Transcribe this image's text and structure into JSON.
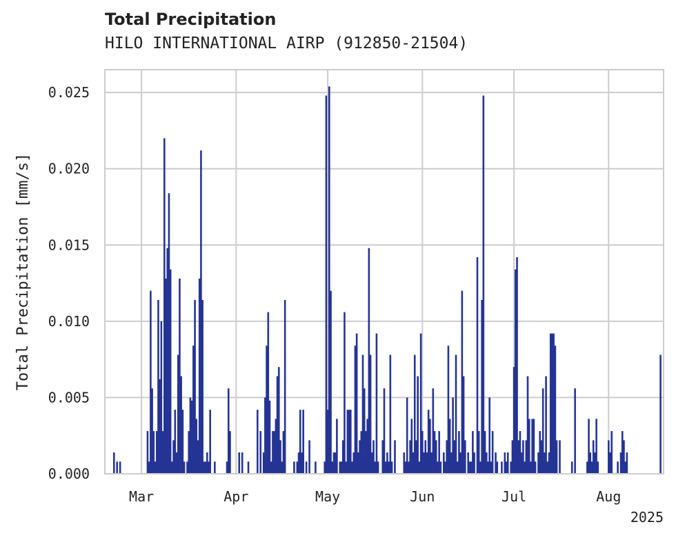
{
  "title": "Total Precipitation",
  "subtitle": "HILO INTERNATIONAL AIRP (912850-21504)",
  "colors": {
    "bar": "#253494",
    "grid": "#cccccc",
    "axis": "#cccccc",
    "text": "#222222"
  },
  "chart_data": {
    "type": "bar",
    "title": "Total Precipitation",
    "subtitle": "HILO INTERNATIONAL AIRP (912850-21504)",
    "xlabel": "",
    "ylabel": "Total Precipitation [mm/s]",
    "x_ticks": [
      "Mar",
      "Apr",
      "May",
      "Jun",
      "Jul",
      "Aug"
    ],
    "x_tick_dates": [
      "2025-03-01",
      "2025-04-01",
      "2025-05-01",
      "2025-06-01",
      "2025-07-01",
      "2025-08-01"
    ],
    "x_offset_label": "2025",
    "xlim": [
      "2025-02-17",
      "2025-08-19"
    ],
    "y_ticks": [
      "0.000",
      "0.005",
      "0.010",
      "0.015",
      "0.020",
      "0.025"
    ],
    "ylim": [
      0,
      0.0265
    ],
    "grid": true,
    "series": [
      {
        "values": [
          [
            "2025-02-20",
            0.0014
          ],
          [
            "2025-02-21",
            0.0008
          ],
          [
            "2025-02-22",
            0.0008
          ],
          [
            "2025-03-03",
            0.0028
          ],
          [
            "2025-03-03T12",
            0.0008
          ],
          [
            "2025-03-04",
            0.012
          ],
          [
            "2025-03-04T12",
            0.0056
          ],
          [
            "2025-03-05",
            0.0028
          ],
          [
            "2025-03-05T12",
            0.0008
          ],
          [
            "2025-03-06",
            0.0028
          ],
          [
            "2025-03-06T12",
            0.0114
          ],
          [
            "2025-03-07",
            0.0062
          ],
          [
            "2025-03-07T12",
            0.01
          ],
          [
            "2025-03-08",
            0.0028
          ],
          [
            "2025-03-08T12",
            0.022
          ],
          [
            "2025-03-09",
            0.0128
          ],
          [
            "2025-03-09T12",
            0.0148
          ],
          [
            "2025-03-10",
            0.0184
          ],
          [
            "2025-03-10T12",
            0.0134
          ],
          [
            "2025-03-11",
            0.0008
          ],
          [
            "2025-03-11T12",
            0.0022
          ],
          [
            "2025-03-12",
            0.0042
          ],
          [
            "2025-03-12T12",
            0.0014
          ],
          [
            "2025-03-13",
            0.0078
          ],
          [
            "2025-03-13T12",
            0.0128
          ],
          [
            "2025-03-14",
            0.0064
          ],
          [
            "2025-03-14T12",
            0.0042
          ],
          [
            "2025-03-15",
            0.0008
          ],
          [
            "2025-03-16",
            0.0008
          ],
          [
            "2025-03-16T12",
            0.0028
          ],
          [
            "2025-03-17",
            0.005
          ],
          [
            "2025-03-17T12",
            0.0048
          ],
          [
            "2025-03-18",
            0.0084
          ],
          [
            "2025-03-18T12",
            0.0114
          ],
          [
            "2025-03-19",
            0.0036
          ],
          [
            "2025-03-19T12",
            0.0022
          ],
          [
            "2025-03-20",
            0.0128
          ],
          [
            "2025-03-20T12",
            0.0212
          ],
          [
            "2025-03-21",
            0.0114
          ],
          [
            "2025-03-21T12",
            0.0008
          ],
          [
            "2025-03-22",
            0.0008
          ],
          [
            "2025-03-22T12",
            0.0014
          ],
          [
            "2025-03-23",
            0.0008
          ],
          [
            "2025-03-23T12",
            0.0042
          ],
          [
            "2025-03-25",
            0.0008
          ],
          [
            "2025-03-29",
            0.0008
          ],
          [
            "2025-03-29T12",
            0.0056
          ],
          [
            "2025-03-30",
            0.0028
          ],
          [
            "2025-04-02",
            0.0014
          ],
          [
            "2025-04-03",
            0.0014
          ],
          [
            "2025-04-05",
            0.0008
          ],
          [
            "2025-04-08",
            0.0042
          ],
          [
            "2025-04-09",
            0.0028
          ],
          [
            "2025-04-10",
            0.0014
          ],
          [
            "2025-04-10T12",
            0.005
          ],
          [
            "2025-04-11",
            0.0084
          ],
          [
            "2025-04-11T12",
            0.0106
          ],
          [
            "2025-04-12",
            0.0048
          ],
          [
            "2025-04-12T12",
            0.0008
          ],
          [
            "2025-04-13",
            0.0028
          ],
          [
            "2025-04-13T12",
            0.0028
          ],
          [
            "2025-04-14",
            0.0036
          ],
          [
            "2025-04-14T12",
            0.0064
          ],
          [
            "2025-04-15",
            0.007
          ],
          [
            "2025-04-15T12",
            0.0022
          ],
          [
            "2025-04-16",
            0.0008
          ],
          [
            "2025-04-16T12",
            0.0028
          ],
          [
            "2025-04-17",
            0.0114
          ],
          [
            "2025-04-20",
            0.0008
          ],
          [
            "2025-04-21",
            0.0008
          ],
          [
            "2025-04-21T12",
            0.0014
          ],
          [
            "2025-04-22",
            0.0042
          ],
          [
            "2025-04-22T12",
            0.0014
          ],
          [
            "2025-04-23",
            0.0042
          ],
          [
            "2025-04-24",
            0.0008
          ],
          [
            "2025-04-25",
            0.0022
          ],
          [
            "2025-04-27",
            0.0008
          ],
          [
            "2025-04-30",
            0.0008
          ],
          [
            "2025-04-30T12",
            0.0248
          ],
          [
            "2025-05-01",
            0.0042
          ],
          [
            "2025-05-01T12",
            0.0254
          ],
          [
            "2025-05-02",
            0.012
          ],
          [
            "2025-05-02T12",
            0.0008
          ],
          [
            "2025-05-03",
            0.0014
          ],
          [
            "2025-05-03T12",
            0.0014
          ],
          [
            "2025-05-04",
            0.0036
          ],
          [
            "2025-05-05",
            0.0008
          ],
          [
            "2025-05-05T12",
            0.0008
          ],
          [
            "2025-05-06",
            0.0022
          ],
          [
            "2025-05-06T12",
            0.0106
          ],
          [
            "2025-05-07",
            0.0008
          ],
          [
            "2025-05-07T12",
            0.0042
          ],
          [
            "2025-05-08",
            0.0042
          ],
          [
            "2025-05-08T12",
            0.0042
          ],
          [
            "2025-05-09",
            0.0008
          ],
          [
            "2025-05-09T12",
            0.0014
          ],
          [
            "2025-05-10",
            0.0084
          ],
          [
            "2025-05-10T12",
            0.0092
          ],
          [
            "2025-05-11",
            0.0014
          ],
          [
            "2025-05-11T12",
            0.0022
          ],
          [
            "2025-05-12",
            0.0028
          ],
          [
            "2025-05-12T12",
            0.0078
          ],
          [
            "2025-05-13",
            0.0056
          ],
          [
            "2025-05-13T12",
            0.0028
          ],
          [
            "2025-05-14",
            0.0036
          ],
          [
            "2025-05-14T12",
            0.0148
          ],
          [
            "2025-05-15",
            0.0078
          ],
          [
            "2025-05-15T12",
            0.0014
          ],
          [
            "2025-05-16",
            0.0022
          ],
          [
            "2025-05-16T12",
            0.0008
          ],
          [
            "2025-05-17",
            0.0092
          ],
          [
            "2025-05-17T12",
            0.0008
          ],
          [
            "2025-05-19",
            0.0022
          ],
          [
            "2025-05-19T12",
            0.0056
          ],
          [
            "2025-05-20",
            0.0008
          ],
          [
            "2025-05-20T12",
            0.0014
          ],
          [
            "2025-05-21",
            0.0008
          ],
          [
            "2025-05-21T12",
            0.0078
          ],
          [
            "2025-05-22",
            0.0008
          ],
          [
            "2025-05-23",
            0.0022
          ],
          [
            "2025-05-26",
            0.0014
          ],
          [
            "2025-05-26T12",
            0.0008
          ],
          [
            "2025-05-27",
            0.005
          ],
          [
            "2025-05-27T12",
            0.0008
          ],
          [
            "2025-05-28",
            0.0022
          ],
          [
            "2025-05-28T12",
            0.0036
          ],
          [
            "2025-05-29",
            0.0014
          ],
          [
            "2025-05-29T12",
            0.0078
          ],
          [
            "2025-05-30",
            0.0022
          ],
          [
            "2025-05-30T12",
            0.0064
          ],
          [
            "2025-05-31",
            0.0008
          ],
          [
            "2025-05-31T12",
            0.0092
          ],
          [
            "2025-06-01",
            0.0028
          ],
          [
            "2025-06-01T12",
            0.0014
          ],
          [
            "2025-06-02",
            0.0022
          ],
          [
            "2025-06-02T12",
            0.0014
          ],
          [
            "2025-06-03",
            0.0042
          ],
          [
            "2025-06-03T12",
            0.0036
          ],
          [
            "2025-06-04",
            0.0014
          ],
          [
            "2025-06-04T12",
            0.0056
          ],
          [
            "2025-06-05",
            0.0028
          ],
          [
            "2025-06-05T12",
            0.0022
          ],
          [
            "2025-06-06",
            0.0008
          ],
          [
            "2025-06-06T12",
            0.0028
          ],
          [
            "2025-06-07",
            0.0008
          ],
          [
            "2025-06-08",
            0.0014
          ],
          [
            "2025-06-08T12",
            0.0008
          ],
          [
            "2025-06-09",
            0.0022
          ],
          [
            "2025-06-09T12",
            0.0084
          ],
          [
            "2025-06-10",
            0.0036
          ],
          [
            "2025-06-10T12",
            0.0014
          ],
          [
            "2025-06-11",
            0.005
          ],
          [
            "2025-06-11T12",
            0.0022
          ],
          [
            "2025-06-12",
            0.0078
          ],
          [
            "2025-06-12T12",
            0.0008
          ],
          [
            "2025-06-13",
            0.0028
          ],
          [
            "2025-06-13T12",
            0.0014
          ],
          [
            "2025-06-14",
            0.012
          ],
          [
            "2025-06-14T12",
            0.0064
          ],
          [
            "2025-06-15",
            0.0022
          ],
          [
            "2025-06-16",
            0.0014
          ],
          [
            "2025-06-16T12",
            0.0008
          ],
          [
            "2025-06-17",
            0.0008
          ],
          [
            "2025-06-17T12",
            0.0028
          ],
          [
            "2025-06-18",
            0.0014
          ],
          [
            "2025-06-19",
            0.0142
          ],
          [
            "2025-06-19T12",
            0.0028
          ],
          [
            "2025-06-20",
            0.0008
          ],
          [
            "2025-06-20T12",
            0.0114
          ],
          [
            "2025-06-21",
            0.0248
          ],
          [
            "2025-06-21T12",
            0.0028
          ],
          [
            "2025-06-22",
            0.0014
          ],
          [
            "2025-06-22T12",
            0.0008
          ],
          [
            "2025-06-23",
            0.005
          ],
          [
            "2025-06-23T12",
            0.0008
          ],
          [
            "2025-06-24",
            0.0028
          ],
          [
            "2025-06-25",
            0.0014
          ],
          [
            "2025-06-25T12",
            0.0008
          ],
          [
            "2025-06-27",
            0.0008
          ],
          [
            "2025-06-28",
            0.0014
          ],
          [
            "2025-06-28T12",
            0.0008
          ],
          [
            "2025-06-29",
            0.0014
          ],
          [
            "2025-06-30",
            0.0008
          ],
          [
            "2025-06-30T12",
            0.0022
          ],
          [
            "2025-07-01",
            0.007
          ],
          [
            "2025-07-01T12",
            0.0134
          ],
          [
            "2025-07-02",
            0.0142
          ],
          [
            "2025-07-02T12",
            0.0022
          ],
          [
            "2025-07-03",
            0.0028
          ],
          [
            "2025-07-03T12",
            0.0014
          ],
          [
            "2025-07-04",
            0.0022
          ],
          [
            "2025-07-04T12",
            0.0008
          ],
          [
            "2025-07-05",
            0.0022
          ],
          [
            "2025-07-05T12",
            0.0064
          ],
          [
            "2025-07-06",
            0.0036
          ],
          [
            "2025-07-06T12",
            0.0008
          ],
          [
            "2025-07-07",
            0.0036
          ],
          [
            "2025-07-07T12",
            0.0036
          ],
          [
            "2025-07-08",
            0.0008
          ],
          [
            "2025-07-09",
            0.0014
          ],
          [
            "2025-07-09T12",
            0.0028
          ],
          [
            "2025-07-10",
            0.0022
          ],
          [
            "2025-07-10T12",
            0.0056
          ],
          [
            "2025-07-11",
            0.0014
          ],
          [
            "2025-07-11T12",
            0.0064
          ],
          [
            "2025-07-12",
            0.0008
          ],
          [
            "2025-07-12T12",
            0.0014
          ],
          [
            "2025-07-13",
            0.0092
          ],
          [
            "2025-07-13T12",
            0.0092
          ],
          [
            "2025-07-14",
            0.0092
          ],
          [
            "2025-07-14T12",
            0.0084
          ],
          [
            "2025-07-15",
            0.0022
          ],
          [
            "2025-07-16",
            0.0022
          ],
          [
            "2025-07-20",
            0.0008
          ],
          [
            "2025-07-21",
            0.0056
          ],
          [
            "2025-07-25",
            0.0008
          ],
          [
            "2025-07-25T12",
            0.0036
          ],
          [
            "2025-07-26",
            0.0014
          ],
          [
            "2025-07-26T12",
            0.0008
          ],
          [
            "2025-07-27",
            0.0022
          ],
          [
            "2025-07-27T12",
            0.0014
          ],
          [
            "2025-07-28",
            0.0036
          ],
          [
            "2025-07-28T12",
            0.0008
          ],
          [
            "2025-08-01",
            0.0022
          ],
          [
            "2025-08-01T12",
            0.0014
          ],
          [
            "2025-08-02",
            0.0028
          ],
          [
            "2025-08-04",
            0.0008
          ],
          [
            "2025-08-05",
            0.0014
          ],
          [
            "2025-08-05T12",
            0.0028
          ],
          [
            "2025-08-06",
            0.0022
          ],
          [
            "2025-08-06T12",
            0.0008
          ],
          [
            "2025-08-07",
            0.0014
          ],
          [
            "2025-08-18",
            0.0078
          ]
        ]
      }
    ]
  }
}
